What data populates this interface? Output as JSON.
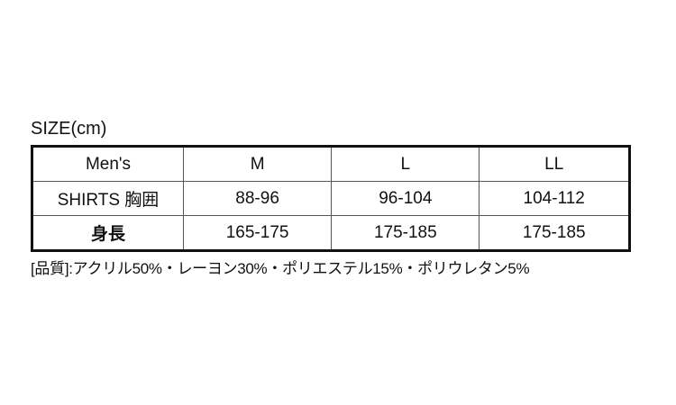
{
  "title": "SIZE(cm)",
  "table": {
    "header": [
      "Men's",
      "M",
      "L",
      "LL"
    ],
    "rows": [
      {
        "label": "SHIRTS 胸囲",
        "values": [
          "88-96",
          "96-104",
          "104-112"
        ]
      },
      {
        "label": "身長",
        "values": [
          "165-175",
          "175-185",
          "175-185"
        ]
      }
    ]
  },
  "note": "[品質]:アクリル50%・レーヨン30%・ポリエステル15%・ポリウレタン5%"
}
